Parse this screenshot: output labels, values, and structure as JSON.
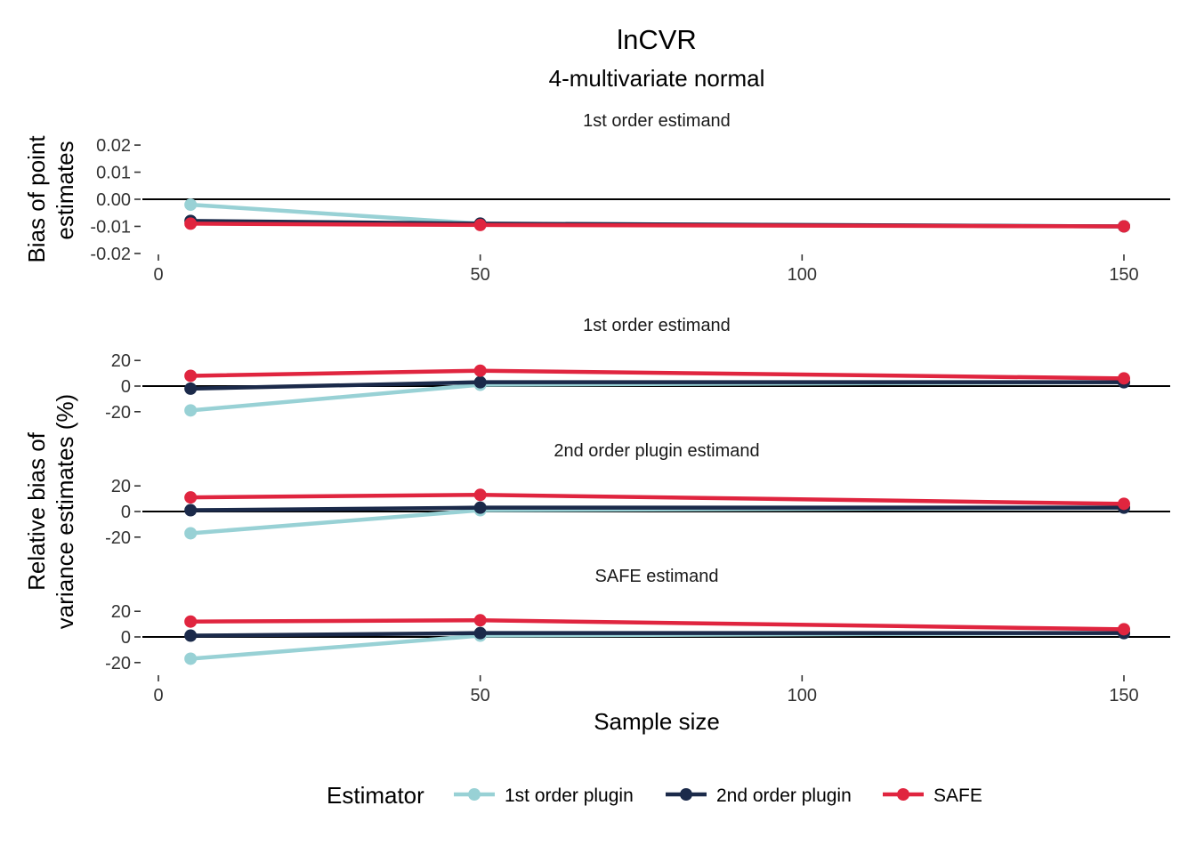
{
  "chart_data": {
    "type": "line",
    "title": "lnCVR",
    "subtitle": "4-multivariate normal",
    "xlabel": "Sample size",
    "x": [
      5,
      50,
      150
    ],
    "xlim": [
      0,
      155
    ],
    "xticks": [
      "0",
      "50",
      "100",
      "150"
    ],
    "colors": {
      "1st order plugin": "#98d1d5",
      "2nd order plugin": "#1b2a4a",
      "SAFE": "#e0253f"
    },
    "panels": [
      {
        "strip": "1st order estimand",
        "ylabel": [
          "Bias of point",
          "estimates"
        ],
        "ylim": [
          -0.022,
          0.022
        ],
        "yticks": [
          0.02,
          0.01,
          0.0,
          -0.01,
          -0.02
        ],
        "yticklabels": [
          "0.02",
          "0.01",
          "0.00",
          "-0.01",
          "-0.02"
        ],
        "series": [
          {
            "name": "1st order plugin",
            "values": [
              -0.002,
              -0.009,
              -0.01
            ]
          },
          {
            "name": "2nd order plugin",
            "values": [
              -0.008,
              -0.009,
              -0.01
            ]
          },
          {
            "name": "SAFE",
            "values": [
              -0.009,
              -0.0095,
              -0.01
            ]
          }
        ]
      },
      {
        "strip": "1st order estimand",
        "ylim": [
          -25,
          25
        ],
        "yticks": [
          20,
          0,
          -20
        ],
        "yticklabels": [
          "20",
          "0",
          "-20"
        ],
        "series": [
          {
            "name": "1st order plugin",
            "values": [
              -19,
              1,
              3
            ]
          },
          {
            "name": "2nd order plugin",
            "values": [
              -2,
              3,
              3
            ]
          },
          {
            "name": "SAFE",
            "values": [
              8,
              12,
              6
            ]
          }
        ]
      },
      {
        "strip": "2nd order plugin estimand",
        "ylim": [
          -25,
          25
        ],
        "yticks": [
          20,
          0,
          -20
        ],
        "yticklabels": [
          "20",
          "0",
          "-20"
        ],
        "series": [
          {
            "name": "1st order plugin",
            "values": [
              -17,
              1,
              3
            ]
          },
          {
            "name": "2nd order plugin",
            "values": [
              1,
              3,
              3
            ]
          },
          {
            "name": "SAFE",
            "values": [
              11,
              13,
              6
            ]
          }
        ]
      },
      {
        "strip": "SAFE estimand",
        "ylim": [
          -25,
          25
        ],
        "yticks": [
          20,
          0,
          -20
        ],
        "yticklabels": [
          "20",
          "0",
          "-20"
        ],
        "series": [
          {
            "name": "1st order plugin",
            "values": [
              -17,
              1,
              3
            ]
          },
          {
            "name": "2nd order plugin",
            "values": [
              1,
              3,
              3
            ]
          },
          {
            "name": "SAFE",
            "values": [
              12,
              13,
              6
            ]
          }
        ]
      }
    ],
    "shared_ylabel_lower": [
      "Relative bias of",
      "variance estimates (%)"
    ],
    "legend": {
      "title": "Estimator",
      "position": "bottom",
      "entries": [
        "1st order plugin",
        "2nd order plugin",
        "SAFE"
      ]
    }
  }
}
